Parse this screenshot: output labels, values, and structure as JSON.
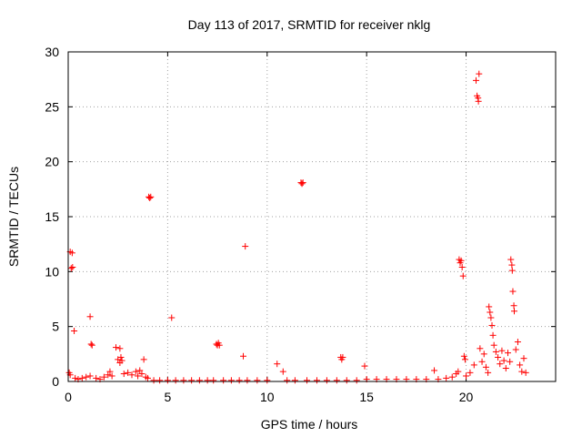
{
  "chart_data": {
    "type": "scatter",
    "title": "Day 113 of 2017, SRMTID for receiver nklg",
    "xlabel": "GPS time / hours",
    "ylabel": "SRMTID / TECUs",
    "xlim": [
      0,
      24.5
    ],
    "ylim": [
      0,
      30
    ],
    "xticks": [
      0,
      5,
      10,
      15,
      20
    ],
    "xtick_labels": [
      "0",
      "5",
      "10",
      "15",
      "20"
    ],
    "yticks": [
      0,
      5,
      10,
      15,
      20,
      25,
      30
    ],
    "ytick_labels": [
      "0",
      "5",
      "10",
      "15",
      "20",
      "25",
      "30"
    ],
    "grid": true,
    "marker": "plus",
    "series": [
      {
        "name": "SRMTID",
        "color": "#ff0000",
        "points": [
          [
            0.05,
            0.8
          ],
          [
            0.1,
            0.6
          ],
          [
            0.1,
            11.8
          ],
          [
            0.15,
            10.3
          ],
          [
            0.2,
            11.7
          ],
          [
            0.22,
            10.4
          ],
          [
            0.3,
            4.6
          ],
          [
            0.35,
            0.3
          ],
          [
            0.5,
            0.2
          ],
          [
            0.7,
            0.3
          ],
          [
            0.9,
            0.4
          ],
          [
            1.1,
            0.5
          ],
          [
            1.1,
            5.9
          ],
          [
            1.15,
            3.4
          ],
          [
            1.2,
            3.3
          ],
          [
            1.4,
            0.3
          ],
          [
            1.6,
            0.2
          ],
          [
            1.8,
            0.4
          ],
          [
            2.0,
            0.6
          ],
          [
            2.1,
            0.9
          ],
          [
            2.2,
            0.5
          ],
          [
            2.4,
            3.1
          ],
          [
            2.5,
            2.0
          ],
          [
            2.6,
            3.0
          ],
          [
            2.6,
            1.7
          ],
          [
            2.65,
            2.2
          ],
          [
            2.7,
            1.9
          ],
          [
            2.8,
            0.7
          ],
          [
            3.0,
            0.8
          ],
          [
            3.2,
            0.6
          ],
          [
            3.4,
            0.9
          ],
          [
            3.5,
            0.5
          ],
          [
            3.6,
            1.0
          ],
          [
            3.7,
            0.7
          ],
          [
            3.8,
            2.0
          ],
          [
            3.9,
            0.4
          ],
          [
            4.0,
            0.3
          ],
          [
            4.05,
            16.8
          ],
          [
            4.1,
            16.7
          ],
          [
            4.15,
            16.8
          ],
          [
            4.3,
            0.1
          ],
          [
            4.6,
            0.1
          ],
          [
            5.0,
            0.1
          ],
          [
            5.2,
            5.8
          ],
          [
            5.4,
            0.1
          ],
          [
            5.8,
            0.1
          ],
          [
            6.2,
            0.1
          ],
          [
            6.6,
            0.1
          ],
          [
            7.0,
            0.1
          ],
          [
            7.3,
            0.1
          ],
          [
            7.45,
            3.4
          ],
          [
            7.5,
            3.3
          ],
          [
            7.55,
            3.5
          ],
          [
            7.6,
            3.3
          ],
          [
            7.8,
            0.1
          ],
          [
            8.2,
            0.1
          ],
          [
            8.6,
            0.1
          ],
          [
            8.8,
            2.3
          ],
          [
            8.9,
            12.3
          ],
          [
            9.0,
            0.1
          ],
          [
            9.5,
            0.1
          ],
          [
            10.0,
            0.1
          ],
          [
            10.5,
            1.6
          ],
          [
            10.8,
            0.9
          ],
          [
            11.0,
            0.1
          ],
          [
            11.4,
            0.1
          ],
          [
            11.7,
            18.1
          ],
          [
            11.75,
            18.0
          ],
          [
            11.8,
            18.1
          ],
          [
            12.0,
            0.1
          ],
          [
            12.5,
            0.1
          ],
          [
            13.0,
            0.1
          ],
          [
            13.5,
            0.1
          ],
          [
            13.7,
            2.2
          ],
          [
            13.75,
            2.0
          ],
          [
            13.8,
            2.2
          ],
          [
            14.0,
            0.1
          ],
          [
            14.5,
            0.1
          ],
          [
            14.9,
            1.4
          ],
          [
            15.0,
            0.2
          ],
          [
            15.5,
            0.2
          ],
          [
            16.0,
            0.2
          ],
          [
            16.5,
            0.2
          ],
          [
            17.0,
            0.2
          ],
          [
            17.5,
            0.2
          ],
          [
            18.0,
            0.2
          ],
          [
            18.4,
            1.0
          ],
          [
            18.6,
            0.2
          ],
          [
            19.0,
            0.3
          ],
          [
            19.3,
            0.4
          ],
          [
            19.5,
            0.7
          ],
          [
            19.6,
            0.9
          ],
          [
            19.65,
            11.1
          ],
          [
            19.7,
            10.8
          ],
          [
            19.75,
            11.0
          ],
          [
            19.8,
            10.4
          ],
          [
            19.85,
            9.6
          ],
          [
            19.9,
            2.3
          ],
          [
            19.95,
            2.0
          ],
          [
            20.0,
            0.5
          ],
          [
            20.2,
            0.8
          ],
          [
            20.4,
            1.5
          ],
          [
            20.5,
            27.4
          ],
          [
            20.55,
            26.0
          ],
          [
            20.6,
            25.8
          ],
          [
            20.62,
            25.5
          ],
          [
            20.65,
            28.0
          ],
          [
            20.7,
            3.0
          ],
          [
            20.8,
            1.8
          ],
          [
            20.9,
            2.5
          ],
          [
            21.0,
            1.3
          ],
          [
            21.1,
            0.8
          ],
          [
            21.15,
            6.8
          ],
          [
            21.2,
            6.3
          ],
          [
            21.25,
            5.8
          ],
          [
            21.3,
            5.1
          ],
          [
            21.35,
            4.2
          ],
          [
            21.4,
            3.3
          ],
          [
            21.5,
            2.7
          ],
          [
            21.6,
            2.2
          ],
          [
            21.7,
            1.6
          ],
          [
            21.8,
            2.8
          ],
          [
            21.9,
            1.9
          ],
          [
            22.0,
            1.2
          ],
          [
            22.1,
            2.6
          ],
          [
            22.2,
            1.8
          ],
          [
            22.25,
            11.1
          ],
          [
            22.3,
            10.6
          ],
          [
            22.32,
            10.1
          ],
          [
            22.35,
            8.2
          ],
          [
            22.4,
            6.9
          ],
          [
            22.42,
            6.4
          ],
          [
            22.5,
            2.9
          ],
          [
            22.6,
            3.6
          ],
          [
            22.7,
            1.5
          ],
          [
            22.8,
            0.9
          ],
          [
            22.9,
            2.1
          ],
          [
            23.0,
            0.8
          ]
        ]
      }
    ]
  }
}
